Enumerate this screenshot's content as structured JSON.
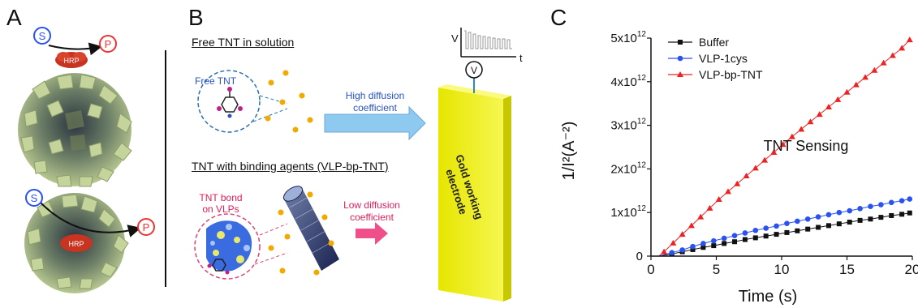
{
  "panels": {
    "a": {
      "letter": "A",
      "substrate": "S",
      "product": "P",
      "enzyme": "HRP"
    },
    "b": {
      "letter": "B",
      "free_title": "Free TNT in solution",
      "free_label": "Free TNT",
      "high_diffusion": [
        "High diffusion",
        "coefficient"
      ],
      "bound_title": "TNT with binding agents (VLP-bp-TNT)",
      "bound_label": [
        "TNT bond",
        "on VLPs"
      ],
      "low_diffusion": [
        "Low diffusion",
        "coefficient"
      ],
      "electrode": [
        "Gold working",
        "electrode"
      ],
      "meter": "V",
      "inset_y": "V",
      "inset_x": "t"
    },
    "c": {
      "letter": "C",
      "annotation": "TNT Sensing"
    }
  },
  "colors": {
    "buffer": "#111111",
    "vlp_1cys": "#2a52f0",
    "vlp_bp_tnt": "#ee2222",
    "electrode": "#f2f21a",
    "arrow_high": "#8ec9ef",
    "arrow_low": "#f0508a",
    "tnt_dot": "#f2a900"
  },
  "chart_data": {
    "type": "line",
    "xlabel": "Time (s)",
    "ylabel": "1/I²(A⁻²)",
    "xlim": [
      0,
      20
    ],
    "ylim": [
      0,
      5000000000000.0
    ],
    "xticks": [
      0,
      5,
      10,
      15,
      20
    ],
    "xtick_labels": [
      "0",
      "5",
      "10",
      "15",
      "20"
    ],
    "yticks": [
      0,
      1000000000000.0,
      2000000000000.0,
      3000000000000.0,
      4000000000000.0,
      5000000000000.0
    ],
    "ytick_labels": [
      "0",
      "1x10",
      "2x10",
      "3x10",
      "4x10",
      "5x10"
    ],
    "ytick_exponent": "12",
    "legend_position": "top-left",
    "series": [
      {
        "name": "Buffer",
        "marker": "square",
        "x": [
          1.6,
          2.4,
          3.2,
          4.0,
          4.8,
          5.6,
          6.4,
          7.2,
          8.0,
          8.8,
          9.6,
          10.4,
          11.2,
          12.0,
          12.8,
          13.6,
          14.4,
          15.2,
          16.0,
          16.8,
          17.6,
          18.4,
          19.2,
          19.8
        ],
        "y": [
          50000000000.0,
          100000000000.0,
          150000000000.0,
          200000000000.0,
          240000000000.0,
          290000000000.0,
          330000000000.0,
          380000000000.0,
          420000000000.0,
          460000000000.0,
          500000000000.0,
          540000000000.0,
          580000000000.0,
          620000000000.0,
          660000000000.0,
          700000000000.0,
          740000000000.0,
          780000000000.0,
          820000000000.0,
          850000000000.0,
          890000000000.0,
          930000000000.0,
          960000000000.0,
          990000000000.0
        ]
      },
      {
        "name": "VLP-1cys",
        "marker": "circle",
        "x": [
          1.6,
          2.4,
          3.2,
          4.0,
          4.8,
          5.6,
          6.4,
          7.2,
          8.0,
          8.8,
          9.6,
          10.4,
          11.2,
          12.0,
          12.8,
          13.6,
          14.4,
          15.2,
          16.0,
          16.8,
          17.6,
          18.4,
          19.2,
          19.8
        ],
        "y": [
          80000000000.0,
          140000000000.0,
          220000000000.0,
          290000000000.0,
          350000000000.0,
          410000000000.0,
          470000000000.0,
          530000000000.0,
          590000000000.0,
          640000000000.0,
          690000000000.0,
          750000000000.0,
          800000000000.0,
          850000000000.0,
          900000000000.0,
          950000000000.0,
          1000000000000.0,
          1040000000000.0,
          1090000000000.0,
          1140000000000.0,
          1180000000000.0,
          1230000000000.0,
          1270000000000.0,
          1310000000000.0
        ]
      },
      {
        "name": "VLP-bp-TNT",
        "marker": "triangle",
        "x": [
          1.0,
          1.7,
          2.4,
          3.1,
          3.8,
          4.5,
          5.2,
          5.9,
          6.6,
          7.3,
          8.0,
          8.7,
          9.4,
          10.1,
          10.8,
          11.5,
          12.2,
          12.9,
          13.6,
          14.3,
          15.0,
          15.7,
          16.4,
          17.1,
          17.8,
          18.5,
          19.2,
          19.8
        ],
        "y": [
          100000000000.0,
          300000000000.0,
          500000000000.0,
          700000000000.0,
          900000000000.0,
          1100000000000.0,
          1300000000000.0,
          1480000000000.0,
          1660000000000.0,
          1840000000000.0,
          2020000000000.0,
          2200000000000.0,
          2380000000000.0,
          2560000000000.0,
          2740000000000.0,
          2910000000000.0,
          3080000000000.0,
          3250000000000.0,
          3420000000000.0,
          3590000000000.0,
          3760000000000.0,
          3930000000000.0,
          4100000000000.0,
          4260000000000.0,
          4430000000000.0,
          4600000000000.0,
          4770000000000.0,
          4960000000000.0
        ]
      }
    ]
  }
}
